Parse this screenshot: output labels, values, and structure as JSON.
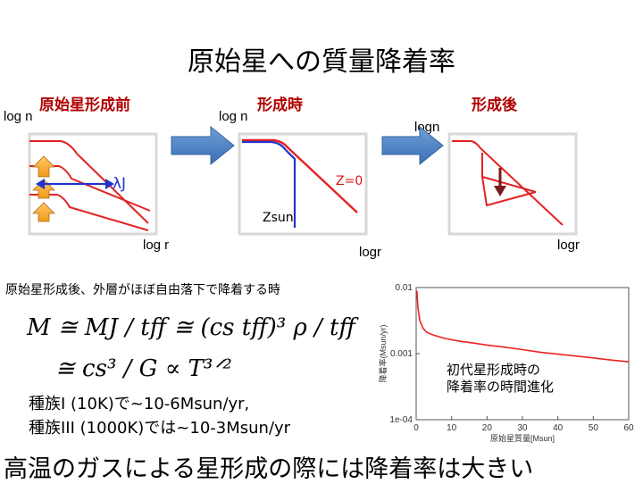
{
  "title": "原始星への質量降着率",
  "stages": {
    "before": "原始星形成前",
    "during": "形成時",
    "after": "形成後"
  },
  "axes": {
    "p1_y": "log n",
    "p1_x": "log r",
    "p2_y": "log n",
    "p2_x": "logr",
    "p3_y": "logn",
    "p3_x": "logr"
  },
  "labels": {
    "lambda_j": "λJ",
    "z0": "Z=0",
    "zsun": "Zsun"
  },
  "description": "原始星形成後、外層がほぼ自由落下で降着する時",
  "equation": {
    "line1": "M ≅ MJ / tff ≅ (cs tff)³ ρ / tff",
    "line2": "≅ cs³ / G ∝ T³ᐟ²"
  },
  "examples": {
    "line1": "種族I (10K)で~10-6Msun/yr,",
    "line2": "種族III (1000K)では~10-3Msun/yr"
  },
  "chart_caption": "初代星形成時の\n降着率の時間進化",
  "chart_data": {
    "type": "line",
    "ylabel": "降着率(Msun/yr)",
    "xlabel": "原始星質量[Msun]",
    "y_scale": "log",
    "ylim": [
      0.0001,
      0.01
    ],
    "xlim": [
      0,
      60
    ],
    "x_ticks": [
      "0",
      "10",
      "20",
      "30",
      "40",
      "50",
      "60"
    ],
    "y_ticks": [
      "0.01",
      "0.001",
      "1e-04"
    ],
    "x": [
      0.2,
      0.5,
      1,
      2,
      3,
      5,
      8,
      12,
      16,
      20,
      25,
      30,
      35,
      40,
      45,
      50,
      55,
      60
    ],
    "y": [
      0.009,
      0.005,
      0.0032,
      0.0024,
      0.0021,
      0.0019,
      0.0017,
      0.00155,
      0.00145,
      0.00135,
      0.00125,
      0.00115,
      0.00105,
      0.00098,
      0.00092,
      0.00086,
      0.0008,
      0.00075
    ],
    "color": "#ee2222"
  },
  "conclusion": "高温のガスによる星形成の際には降着率は大きい"
}
